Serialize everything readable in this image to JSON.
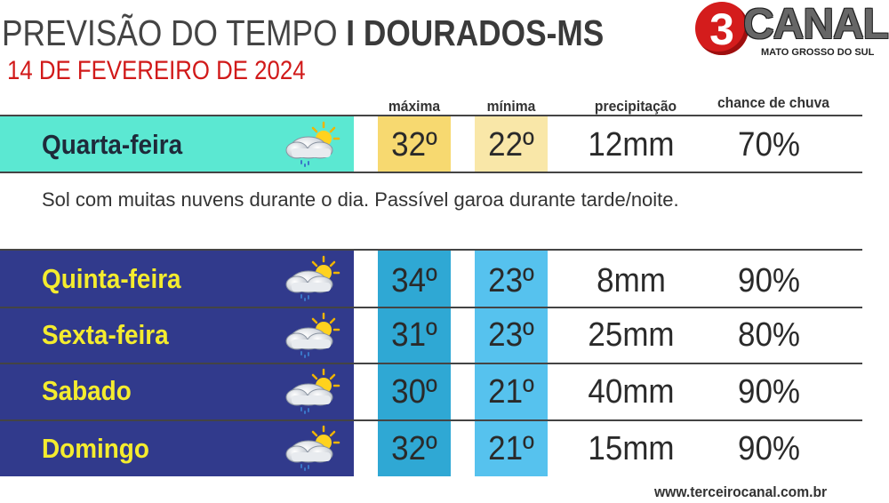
{
  "header": {
    "title_light": "PREVISÃO DO TEMPO",
    "title_bold": "I DOURADOS-MS",
    "date": "14 DE FEVEREIRO DE 2024"
  },
  "logo": {
    "number": "3",
    "word": "CANAL",
    "subtitle": "MATO GROSSO DO SUL"
  },
  "columns": {
    "max": "máxima",
    "min": "mínima",
    "precipitation": "precipitação",
    "chance": "chance de chuva"
  },
  "today": {
    "day": "Quarta-feira",
    "icon": "sun-cloud-rain-icon",
    "max": "32º",
    "min": "22º",
    "precipitation": "12mm",
    "chance": "70%",
    "description": "Sol com muitas nuvens durante o dia. Passível garoa durante tarde/noite."
  },
  "forecast": [
    {
      "day": "Quinta-feira",
      "icon": "sun-cloud-rain-icon",
      "max": "34º",
      "min": "23º",
      "precipitation": "8mm",
      "chance": "90%"
    },
    {
      "day": "Sexta-feira",
      "icon": "sun-cloud-rain-icon",
      "max": "31º",
      "min": "23º",
      "precipitation": "25mm",
      "chance": "80%"
    },
    {
      "day": "Sabado",
      "icon": "sun-cloud-rain-icon",
      "max": "30º",
      "min": "21º",
      "precipitation": "40mm",
      "chance": "90%"
    },
    {
      "day": "Domingo",
      "icon": "sun-cloud-rain-icon",
      "max": "32º",
      "min": "21º",
      "precipitation": "15mm",
      "chance": "90%"
    }
  ],
  "footer": {
    "url": "www.terceirocanal.com.br"
  },
  "colors": {
    "today_day_bg": "#5be8d2",
    "today_max_bg": "#f7d970",
    "today_min_bg": "#f9e7a8",
    "forecast_day_bg": "#313a8c",
    "forecast_day_text": "#f4ec2e",
    "forecast_max_bg": "#2fa8d4",
    "forecast_min_bg": "#56c2ee",
    "title_date": "#d11a1a",
    "logo_red": "#d41c1c"
  }
}
